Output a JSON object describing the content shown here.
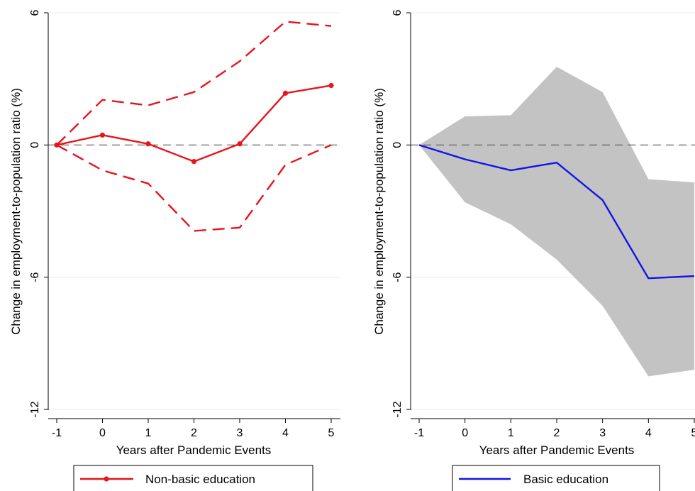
{
  "chart_data": [
    {
      "type": "line",
      "xlabel": "Years after Pandemic Events",
      "ylabel": "Change in employment-to-population ratio (%)",
      "x": [
        -1,
        0,
        1,
        2,
        3,
        4,
        5
      ],
      "xticks": [
        "-1",
        "0",
        "1",
        "2",
        "3",
        "4",
        "5"
      ],
      "yticks": [
        "-12",
        "-6",
        "0",
        "6"
      ],
      "ylim": [
        -12,
        6
      ],
      "grid": true,
      "reference_line": 0,
      "series": [
        {
          "name": "Non-basic education",
          "role": "estimate",
          "values": [
            0,
            0.45,
            0.05,
            -0.75,
            0.05,
            2.35,
            2.7
          ],
          "color": "#e8141b",
          "markers": true
        },
        {
          "role": "upper",
          "values": [
            0,
            2.05,
            1.8,
            2.4,
            3.8,
            5.6,
            5.4
          ],
          "color": "#e8141b",
          "dash": true
        },
        {
          "role": "lower",
          "values": [
            0,
            -1.15,
            -1.75,
            -3.9,
            -3.75,
            -0.9,
            0
          ],
          "color": "#e8141b",
          "dash": true
        }
      ],
      "legend": {
        "position": "bottom",
        "label": "Non-basic education"
      }
    },
    {
      "type": "line",
      "xlabel": "Years after Pandemic Events",
      "ylabel": "Change in employment-to-population ratio (%)",
      "x": [
        -1,
        0,
        1,
        2,
        3,
        4,
        5
      ],
      "xticks": [
        "-1",
        "0",
        "1",
        "2",
        "3",
        "4",
        "5"
      ],
      "yticks": [
        "-12",
        "-6",
        "0",
        "6"
      ],
      "ylim": [
        -12,
        6
      ],
      "grid": true,
      "reference_line": 0,
      "series": [
        {
          "name": "Basic education",
          "role": "estimate",
          "values": [
            0,
            -0.65,
            -1.15,
            -0.8,
            -2.5,
            -6.05,
            -5.95
          ],
          "color": "#1414e8"
        }
      ],
      "band": {
        "upper": [
          0,
          1.3,
          1.35,
          3.55,
          2.4,
          -1.55,
          -1.7
        ],
        "lower": [
          0,
          -2.6,
          -3.6,
          -5.2,
          -7.3,
          -10.5,
          -10.2
        ],
        "color": "#c3c3c3"
      },
      "legend": {
        "position": "bottom",
        "label": "Basic education"
      }
    }
  ]
}
